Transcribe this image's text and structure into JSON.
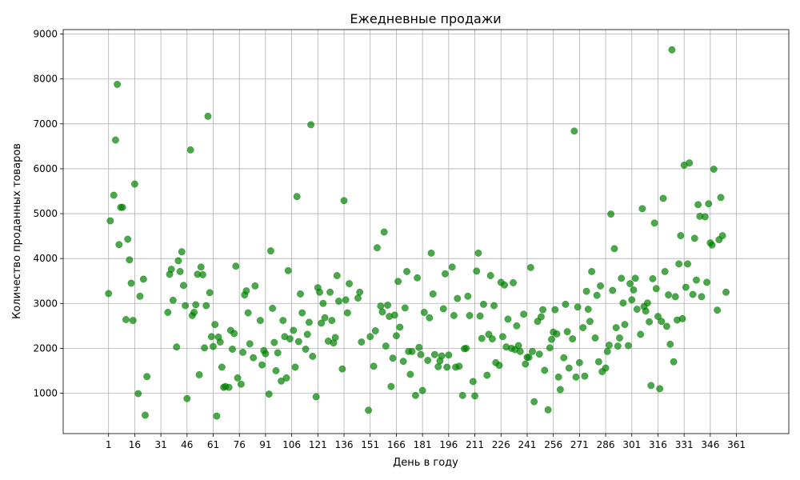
{
  "chart_data": {
    "type": "scatter",
    "title": "Ежедневные продажи",
    "xlabel": "День в году",
    "ylabel": "Количество проданных товаров",
    "xlim": [
      -25,
      391
    ],
    "ylim": [
      100,
      9100
    ],
    "xticks": [
      1,
      16,
      31,
      46,
      61,
      76,
      91,
      106,
      121,
      136,
      151,
      166,
      181,
      196,
      211,
      226,
      241,
      256,
      271,
      286,
      301,
      316,
      331,
      346,
      361
    ],
    "yticks": [
      1000,
      2000,
      3000,
      4000,
      5000,
      6000,
      7000,
      8000,
      9000
    ],
    "grid": true,
    "legend": "none",
    "point_color": "#008000",
    "points": [
      [
        1,
        3220
      ],
      [
        2,
        4840
      ],
      [
        4,
        5410
      ],
      [
        5,
        6640
      ],
      [
        6,
        7880
      ],
      [
        7,
        4310
      ],
      [
        8,
        5140
      ],
      [
        9,
        5140
      ],
      [
        11,
        2640
      ],
      [
        12,
        4430
      ],
      [
        13,
        3970
      ],
      [
        14,
        3450
      ],
      [
        15,
        2620
      ],
      [
        16,
        5660
      ],
      [
        18,
        990
      ],
      [
        19,
        3160
      ],
      [
        21,
        3540
      ],
      [
        22,
        510
      ],
      [
        23,
        1370
      ],
      [
        35,
        2800
      ],
      [
        36,
        3650
      ],
      [
        37,
        3760
      ],
      [
        38,
        3070
      ],
      [
        40,
        2030
      ],
      [
        41,
        3950
      ],
      [
        42,
        3710
      ],
      [
        43,
        4150
      ],
      [
        44,
        3400
      ],
      [
        45,
        2950
      ],
      [
        46,
        880
      ],
      [
        48,
        6420
      ],
      [
        49,
        2730
      ],
      [
        50,
        2800
      ],
      [
        51,
        2970
      ],
      [
        52,
        3650
      ],
      [
        53,
        1410
      ],
      [
        54,
        3810
      ],
      [
        55,
        3640
      ],
      [
        56,
        2010
      ],
      [
        57,
        2950
      ],
      [
        58,
        7170
      ],
      [
        59,
        3240
      ],
      [
        60,
        2260
      ],
      [
        61,
        2040
      ],
      [
        62,
        2530
      ],
      [
        63,
        490
      ],
      [
        64,
        2250
      ],
      [
        65,
        2140
      ],
      [
        66,
        1580
      ],
      [
        67,
        1130
      ],
      [
        68,
        1150
      ],
      [
        70,
        1130
      ],
      [
        71,
        2400
      ],
      [
        72,
        1980
      ],
      [
        73,
        2330
      ],
      [
        74,
        3830
      ],
      [
        75,
        1340
      ],
      [
        77,
        1200
      ],
      [
        78,
        1910
      ],
      [
        79,
        3190
      ],
      [
        80,
        3280
      ],
      [
        81,
        2790
      ],
      [
        82,
        2100
      ],
      [
        84,
        1790
      ],
      [
        85,
        3390
      ],
      [
        88,
        2620
      ],
      [
        89,
        1630
      ],
      [
        90,
        1950
      ],
      [
        91,
        1880
      ],
      [
        93,
        980
      ],
      [
        94,
        4170
      ],
      [
        95,
        2890
      ],
      [
        96,
        2130
      ],
      [
        97,
        1500
      ],
      [
        98,
        1900
      ],
      [
        100,
        1270
      ],
      [
        101,
        2620
      ],
      [
        102,
        2260
      ],
      [
        103,
        1340
      ],
      [
        104,
        3730
      ],
      [
        105,
        2210
      ],
      [
        107,
        2400
      ],
      [
        108,
        1580
      ],
      [
        109,
        5380
      ],
      [
        110,
        2150
      ],
      [
        111,
        3210
      ],
      [
        112,
        2790
      ],
      [
        114,
        1980
      ],
      [
        115,
        2310
      ],
      [
        116,
        2580
      ],
      [
        117,
        6980
      ],
      [
        118,
        1820
      ],
      [
        120,
        920
      ],
      [
        121,
        3350
      ],
      [
        122,
        3250
      ],
      [
        123,
        2560
      ],
      [
        124,
        3000
      ],
      [
        125,
        2680
      ],
      [
        127,
        2160
      ],
      [
        128,
        3250
      ],
      [
        129,
        2620
      ],
      [
        130,
        2120
      ],
      [
        131,
        2240
      ],
      [
        132,
        3620
      ],
      [
        133,
        3050
      ],
      [
        135,
        1540
      ],
      [
        136,
        5290
      ],
      [
        137,
        3080
      ],
      [
        138,
        2790
      ],
      [
        139,
        3440
      ],
      [
        144,
        3120
      ],
      [
        145,
        3250
      ],
      [
        146,
        2140
      ],
      [
        150,
        620
      ],
      [
        151,
        2260
      ],
      [
        153,
        1600
      ],
      [
        154,
        2390
      ],
      [
        155,
        4240
      ],
      [
        157,
        2940
      ],
      [
        158,
        2810
      ],
      [
        159,
        4590
      ],
      [
        160,
        2050
      ],
      [
        161,
        2960
      ],
      [
        162,
        2710
      ],
      [
        163,
        1150
      ],
      [
        164,
        1780
      ],
      [
        165,
        2740
      ],
      [
        166,
        2280
      ],
      [
        167,
        3490
      ],
      [
        168,
        2470
      ],
      [
        170,
        1710
      ],
      [
        171,
        2900
      ],
      [
        172,
        3710
      ],
      [
        173,
        1930
      ],
      [
        174,
        1420
      ],
      [
        175,
        1930
      ],
      [
        177,
        950
      ],
      [
        178,
        3570
      ],
      [
        179,
        2020
      ],
      [
        180,
        1860
      ],
      [
        181,
        1060
      ],
      [
        182,
        2800
      ],
      [
        184,
        1730
      ],
      [
        185,
        2680
      ],
      [
        186,
        4120
      ],
      [
        187,
        3210
      ],
      [
        188,
        1860
      ],
      [
        190,
        1590
      ],
      [
        191,
        1720
      ],
      [
        192,
        1830
      ],
      [
        193,
        2880
      ],
      [
        194,
        3660
      ],
      [
        195,
        1580
      ],
      [
        196,
        1850
      ],
      [
        198,
        3810
      ],
      [
        199,
        2730
      ],
      [
        200,
        1580
      ],
      [
        201,
        3110
      ],
      [
        202,
        1600
      ],
      [
        204,
        950
      ],
      [
        205,
        1990
      ],
      [
        206,
        2000
      ],
      [
        207,
        3160
      ],
      [
        208,
        2730
      ],
      [
        210,
        1260
      ],
      [
        211,
        940
      ],
      [
        212,
        3720
      ],
      [
        213,
        4120
      ],
      [
        214,
        2720
      ],
      [
        215,
        2220
      ],
      [
        216,
        2980
      ],
      [
        218,
        1400
      ],
      [
        219,
        2310
      ],
      [
        220,
        3620
      ],
      [
        221,
        2210
      ],
      [
        222,
        2950
      ],
      [
        223,
        1680
      ],
      [
        225,
        1620
      ],
      [
        226,
        3470
      ],
      [
        227,
        2260
      ],
      [
        228,
        3410
      ],
      [
        229,
        2030
      ],
      [
        230,
        2650
      ],
      [
        232,
        2000
      ],
      [
        233,
        3460
      ],
      [
        234,
        1970
      ],
      [
        235,
        2500
      ],
      [
        236,
        2060
      ],
      [
        237,
        1930
      ],
      [
        239,
        2760
      ],
      [
        240,
        1650
      ],
      [
        241,
        1800
      ],
      [
        242,
        1800
      ],
      [
        243,
        3800
      ],
      [
        244,
        1930
      ],
      [
        245,
        810
      ],
      [
        247,
        2600
      ],
      [
        248,
        1870
      ],
      [
        249,
        2700
      ],
      [
        250,
        2860
      ],
      [
        251,
        1510
      ],
      [
        253,
        630
      ],
      [
        254,
        2010
      ],
      [
        255,
        2200
      ],
      [
        256,
        2360
      ],
      [
        257,
        2860
      ],
      [
        258,
        2320
      ],
      [
        259,
        1360
      ],
      [
        260,
        1080
      ],
      [
        262,
        1790
      ],
      [
        263,
        2980
      ],
      [
        264,
        2370
      ],
      [
        265,
        1560
      ],
      [
        267,
        2210
      ],
      [
        268,
        6840
      ],
      [
        269,
        1360
      ],
      [
        270,
        2920
      ],
      [
        271,
        1680
      ],
      [
        273,
        2460
      ],
      [
        274,
        1380
      ],
      [
        275,
        3270
      ],
      [
        276,
        2870
      ],
      [
        277,
        2600
      ],
      [
        278,
        3710
      ],
      [
        280,
        2230
      ],
      [
        281,
        3180
      ],
      [
        282,
        1700
      ],
      [
        283,
        3390
      ],
      [
        284,
        1480
      ],
      [
        286,
        1560
      ],
      [
        287,
        1930
      ],
      [
        288,
        2070
      ],
      [
        289,
        4990
      ],
      [
        290,
        3290
      ],
      [
        291,
        4220
      ],
      [
        292,
        2460
      ],
      [
        293,
        2050
      ],
      [
        294,
        2230
      ],
      [
        295,
        3560
      ],
      [
        296,
        3010
      ],
      [
        297,
        2530
      ],
      [
        299,
        2060
      ],
      [
        300,
        3440
      ],
      [
        301,
        3080
      ],
      [
        302,
        3300
      ],
      [
        303,
        3560
      ],
      [
        304,
        2870
      ],
      [
        306,
        2310
      ],
      [
        307,
        5110
      ],
      [
        308,
        2930
      ],
      [
        309,
        2830
      ],
      [
        310,
        3010
      ],
      [
        311,
        2590
      ],
      [
        312,
        1170
      ],
      [
        313,
        3550
      ],
      [
        314,
        4790
      ],
      [
        315,
        3330
      ],
      [
        316,
        2710
      ],
      [
        317,
        1100
      ],
      [
        318,
        2600
      ],
      [
        319,
        5340
      ],
      [
        320,
        3710
      ],
      [
        321,
        2490
      ],
      [
        322,
        3190
      ],
      [
        323,
        2090
      ],
      [
        324,
        8650
      ],
      [
        325,
        1700
      ],
      [
        326,
        3150
      ],
      [
        327,
        2630
      ],
      [
        328,
        3880
      ],
      [
        329,
        4510
      ],
      [
        330,
        2660
      ],
      [
        331,
        6080
      ],
      [
        332,
        3360
      ],
      [
        333,
        3880
      ],
      [
        334,
        6130
      ],
      [
        336,
        3200
      ],
      [
        337,
        4450
      ],
      [
        338,
        3520
      ],
      [
        339,
        5200
      ],
      [
        340,
        4940
      ],
      [
        341,
        3150
      ],
      [
        343,
        4930
      ],
      [
        344,
        3470
      ],
      [
        345,
        5220
      ],
      [
        346,
        4350
      ],
      [
        347,
        4300
      ],
      [
        348,
        5990
      ],
      [
        350,
        2850
      ],
      [
        351,
        4420
      ],
      [
        352,
        5360
      ],
      [
        353,
        4510
      ],
      [
        355,
        3250
      ]
    ]
  }
}
